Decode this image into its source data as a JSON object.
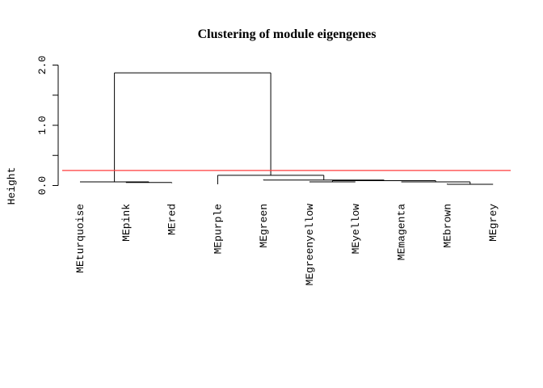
{
  "chart_data": {
    "type": "dendrogram",
    "title": "Clustering of module eigengenes",
    "xlabel": "",
    "ylabel": "Height",
    "ylim": [
      0,
      2.1
    ],
    "y_ticks": [
      0.0,
      1.0,
      2.0
    ],
    "y_tick_labels": [
      "0.0",
      "1.0",
      "2.0"
    ],
    "y_minor_ticks": [
      0.5,
      1.5
    ],
    "cut_height": 0.25,
    "cut_color": "#ff3b3b",
    "line_color": "#000000",
    "leaves": [
      "MEturquoise",
      "MEpink",
      "MEred",
      "MEpurple",
      "MEgreen",
      "MEgreenyellow",
      "MEyellow",
      "MEmagenta",
      "MEbrown",
      "MEgrey"
    ],
    "leaf_heights": [
      0.06,
      0.05,
      0.04,
      0.02,
      0.1,
      0.06,
      0.06,
      0.06,
      0.03,
      0.02
    ],
    "merges": [
      {
        "left": "MEbrown",
        "right": "MEgrey",
        "height": 0.02
      },
      {
        "left": "MEpink",
        "right": "MEred",
        "height": 0.05
      },
      {
        "left": "MEgreenyellow",
        "right": "MEyellow",
        "height": 0.06
      },
      {
        "left": "MEmagenta",
        "right": [
          "MEbrown",
          "MEgrey"
        ],
        "height": 0.06
      },
      {
        "left": "MEturquoise",
        "right": [
          "MEpink",
          "MEred"
        ],
        "height": 0.06
      },
      {
        "left": [
          "MEgreenyellow",
          "MEyellow"
        ],
        "right": [
          "MEmagenta",
          "MEbrown",
          "MEgrey"
        ],
        "height": 0.08
      },
      {
        "left": "MEgreen",
        "right": [
          "MEgreenyellow",
          "MEyellow",
          "MEmagenta",
          "MEbrown",
          "MEgrey"
        ],
        "height": 0.09
      },
      {
        "left": "MEpurple",
        "right": [
          "MEgreen",
          "MEgreenyellow",
          "MEyellow",
          "MEmagenta",
          "MEbrown",
          "MEgrey"
        ],
        "height": 0.17
      },
      {
        "left": [
          "MEturquoise",
          "MEpink",
          "MEred"
        ],
        "right": [
          "MEpurple",
          "MEgreen",
          "MEgreenyellow",
          "MEyellow",
          "MEmagenta",
          "MEbrown",
          "MEgrey"
        ],
        "height": 1.87
      }
    ]
  }
}
